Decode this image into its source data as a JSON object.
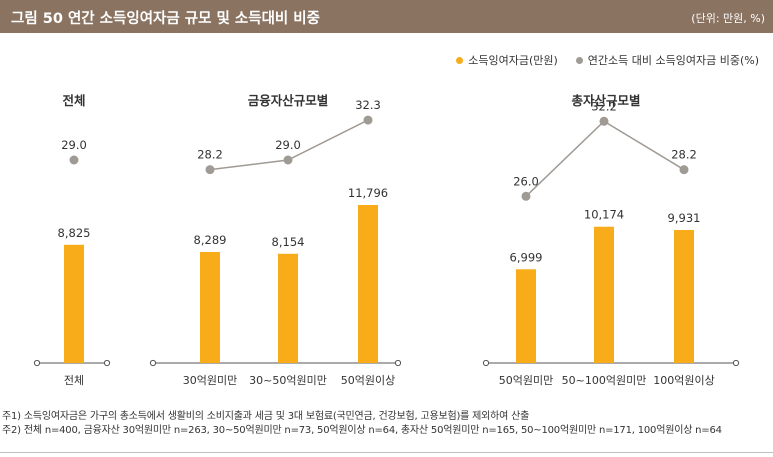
{
  "header": {
    "title": "그림 50  연간 소득잉여자금 규모 및 소득대비 비중",
    "unit": "(단위: 만원, %)"
  },
  "colors": {
    "bar": "#f8ac1a",
    "dot": "#a09a94",
    "header_bg": "#8a7361"
  },
  "legend": {
    "bar_label": "소득잉여자금(만원)",
    "dot_label": "연간소득 대비 소득잉여자금 비중(%)"
  },
  "chart_data": {
    "type": "bar+line",
    "ylim_bar": [
      0,
      14000
    ],
    "ylim_line": [
      0,
      40
    ],
    "series": [
      {
        "name": "소득잉여자금(만원)",
        "type": "bar"
      },
      {
        "name": "연간소득 대비 소득잉여자금 비중(%)",
        "type": "line"
      }
    ],
    "groups": [
      {
        "title": "전체",
        "categories": [
          "전체"
        ],
        "bar_values": [
          8825
        ],
        "bar_labels": [
          "8,825"
        ],
        "line_values": [
          29.0
        ],
        "line_labels": [
          "29.0"
        ]
      },
      {
        "title": "금융자산규모별",
        "categories": [
          "30억원미만",
          "30~50억원미만",
          "50억원이상"
        ],
        "bar_values": [
          8289,
          8154,
          11796
        ],
        "bar_labels": [
          "8,289",
          "8,154",
          "11,796"
        ],
        "line_values": [
          28.2,
          29.0,
          32.3
        ],
        "line_labels": [
          "28.2",
          "29.0",
          "32.3"
        ]
      },
      {
        "title": "총자산규모별",
        "categories": [
          "50억원미만",
          "50~100억원미만",
          "100억원이상"
        ],
        "bar_values": [
          6999,
          10174,
          9931
        ],
        "bar_labels": [
          "6,999",
          "10,174",
          "9,931"
        ],
        "line_values": [
          26.0,
          32.2,
          28.2
        ],
        "line_labels": [
          "26.0",
          "32.2",
          "28.2"
        ]
      }
    ]
  },
  "notes": [
    "주1) 소득잉여자금은 가구의 총소득에서 생활비의 소비지출과 세금 및 3대 보험료(국민연금, 건강보험, 고용보험)를 제외하여 산출",
    "주2) 전체 n=400, 금융자산 30억원미만 n=263, 30~50억원미만 n=73, 50억원이상 n=64, 총자산 50억원미만 n=165, 50~100억원미만 n=171, 100억원이상 n=64"
  ]
}
